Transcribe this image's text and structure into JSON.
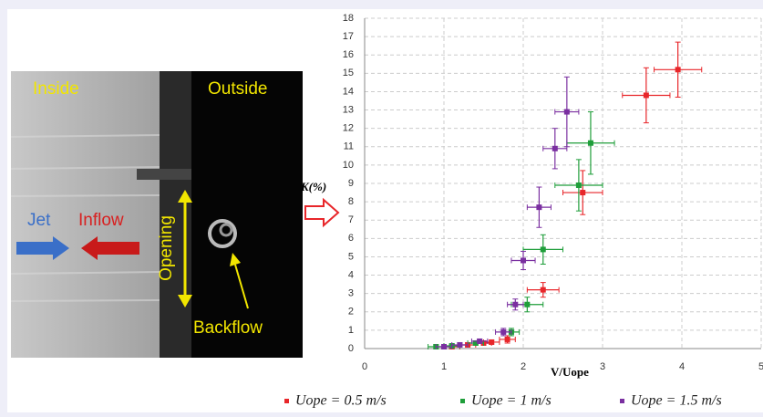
{
  "chart_data": {
    "type": "scatter",
    "annotations": [
      "Inside",
      "Outside",
      "Jet",
      "Inflow",
      "Opening",
      "Backflow"
    ],
    "ylabel": "K(%)",
    "xlabel": "V/Uope",
    "xlim": [
      0,
      5
    ],
    "xticks": [
      0,
      1,
      2,
      3,
      4,
      5
    ],
    "ylim": [
      0,
      18
    ],
    "yticks": [
      0,
      1,
      2,
      3,
      4,
      5,
      6,
      7,
      8,
      9,
      10,
      11,
      12,
      13,
      14,
      15,
      16,
      17,
      18
    ],
    "grid": true,
    "series": [
      {
        "name": "Uope = 0.5 m/s",
        "color": "#e8262a",
        "x": [
          1.1,
          1.3,
          1.5,
          1.6,
          1.8,
          2.25,
          2.75,
          3.55,
          3.95
        ],
        "values": [
          0.1,
          0.2,
          0.3,
          0.35,
          0.5,
          3.2,
          8.5,
          13.8,
          15.2
        ],
        "xerr": [
          0.1,
          0.1,
          0.1,
          0.1,
          0.1,
          0.2,
          0.25,
          0.3,
          0.3
        ],
        "yerr": [
          0.1,
          0.1,
          0.1,
          0.1,
          0.2,
          0.4,
          1.2,
          1.5,
          1.5
        ]
      },
      {
        "name": "Uope = 1 m/s",
        "color": "#1f9e3a",
        "x": [
          0.9,
          1.1,
          1.4,
          1.85,
          2.05,
          2.25,
          2.7,
          2.85
        ],
        "values": [
          0.1,
          0.15,
          0.3,
          0.9,
          2.4,
          5.4,
          8.9,
          11.2
        ],
        "xerr": [
          0.1,
          0.1,
          0.1,
          0.1,
          0.2,
          0.25,
          0.3,
          0.3
        ],
        "yerr": [
          0.1,
          0.1,
          0.1,
          0.2,
          0.4,
          0.8,
          1.4,
          1.7
        ]
      },
      {
        "name": "Uope = 1.5 m/s",
        "color": "#7a2fa0",
        "x": [
          1.0,
          1.2,
          1.45,
          1.75,
          1.9,
          2.0,
          2.2,
          2.4,
          2.55
        ],
        "values": [
          0.1,
          0.2,
          0.4,
          0.9,
          2.4,
          4.8,
          7.7,
          10.9,
          12.9
        ],
        "xerr": [
          0.1,
          0.1,
          0.1,
          0.1,
          0.1,
          0.15,
          0.15,
          0.15,
          0.15
        ],
        "yerr": [
          0.1,
          0.1,
          0.1,
          0.2,
          0.3,
          0.5,
          1.1,
          1.1,
          1.9
        ]
      }
    ]
  }
}
